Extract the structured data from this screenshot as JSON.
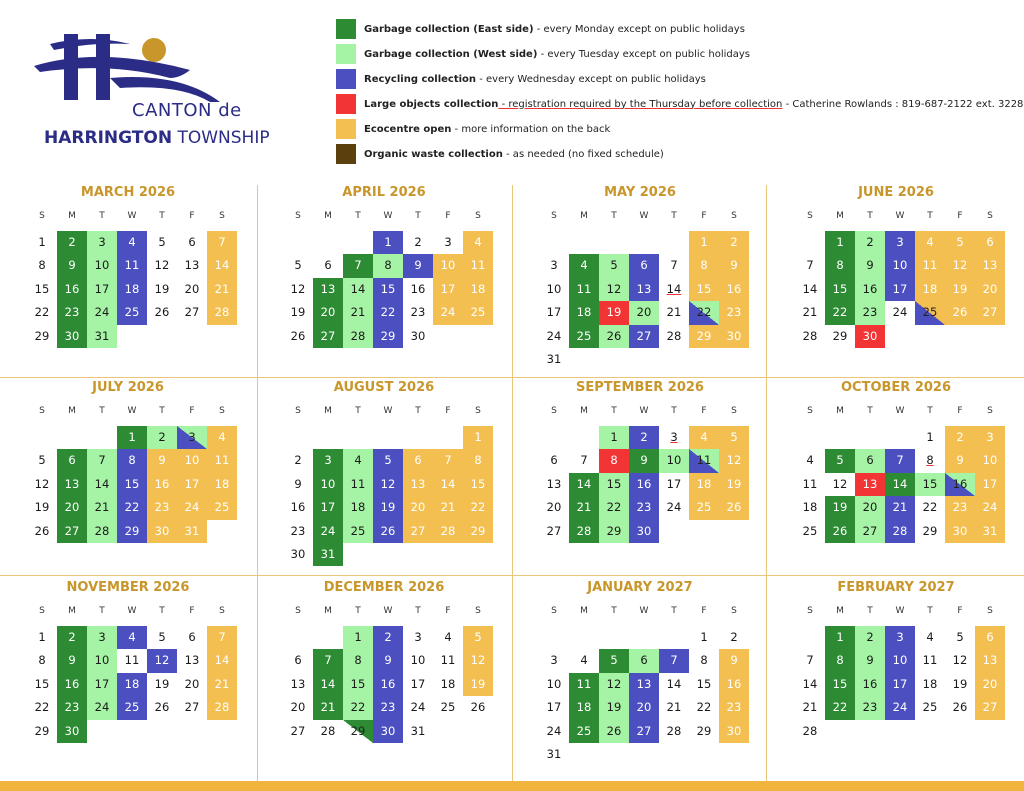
{
  "header": {
    "logo_line1": "CANTON de",
    "logo_line2_bold": "HARRINGTON",
    "logo_line2_rest": " TOWNSHIP"
  },
  "colors": {
    "east": "#2d8b34",
    "west": "#a5f3a4",
    "recycling": "#4b4fbf",
    "large": "#f23434",
    "eco": "#f3bf51",
    "organic": "#5b3f0c",
    "title": "#c8962a",
    "divider": "#e9c57a",
    "footer": "#f1b43c"
  },
  "legend": [
    {
      "key": "east",
      "label": "Garbage collection (East side)",
      "text": " - every Monday except on public holidays"
    },
    {
      "key": "west",
      "label": "Garbage collection (West side)",
      "text": " - every Tuesday except on public holidays"
    },
    {
      "key": "recycling",
      "label": "Recycling collection",
      "text": " - every Wednesday except on public holidays"
    },
    {
      "key": "large",
      "label": "Large objects collection",
      "text_underlined": " - registration required by the Thursday before collection",
      "text": " - Catherine Rowlands : 819-687-2122 ext. 3228"
    },
    {
      "key": "eco",
      "label": "Ecocentre open",
      "text": " - more information on the back"
    },
    {
      "key": "organic",
      "label": "Organic waste collection",
      "text": " - as needed (no fixed schedule)"
    }
  ],
  "weekdays": [
    "S",
    "M",
    "T",
    "W",
    "T",
    "F",
    "S"
  ],
  "months": [
    {
      "title": "MARCH 2026",
      "start": 0,
      "days": 31,
      "east": [
        2,
        9,
        16,
        23,
        30
      ],
      "west": [
        3,
        10,
        17,
        24,
        31
      ],
      "recycling": [
        4,
        11,
        18,
        25
      ],
      "eco": [
        7,
        14,
        21,
        28
      ],
      "large": [],
      "split": [],
      "underline": []
    },
    {
      "title": "APRIL 2026",
      "start": 3,
      "days": 30,
      "east": [
        7,
        13,
        20,
        27
      ],
      "west": [
        8,
        14,
        21,
        28
      ],
      "recycling": [
        1,
        9,
        15,
        22,
        29
      ],
      "eco": [
        4,
        10,
        11,
        17,
        18,
        24,
        25
      ],
      "large": [],
      "split": [],
      "underline": []
    },
    {
      "title": "MAY 2026",
      "start": 5,
      "days": 31,
      "east": [
        4,
        11,
        18,
        25
      ],
      "west": [
        5,
        12,
        20,
        26
      ],
      "recycling": [
        6,
        13,
        27
      ],
      "eco": [
        1,
        2,
        8,
        9,
        15,
        16,
        23,
        29,
        30
      ],
      "large": [
        19
      ],
      "split": [
        {
          "d": 22,
          "a": "west",
          "b": "recycling"
        }
      ],
      "underline": [
        14
      ]
    },
    {
      "title": "JUNE 2026",
      "start": 1,
      "days": 30,
      "east": [
        1,
        8,
        15,
        22
      ],
      "west": [
        2,
        9,
        16,
        23
      ],
      "recycling": [
        3,
        10,
        17
      ],
      "eco": [
        4,
        5,
        6,
        11,
        12,
        13,
        18,
        19,
        20,
        26,
        27
      ],
      "large": [
        30
      ],
      "split": [
        {
          "d": 25,
          "a": "eco",
          "b": "recycling"
        }
      ],
      "underline": []
    },
    {
      "title": "JULY 2026",
      "start": 3,
      "days": 31,
      "east": [
        1,
        6,
        13,
        20,
        27
      ],
      "west": [
        2,
        7,
        14,
        21,
        28
      ],
      "recycling": [
        8,
        15,
        22,
        29
      ],
      "eco": [
        4,
        9,
        10,
        11,
        16,
        17,
        18,
        23,
        24,
        25,
        30,
        31
      ],
      "large": [],
      "split": [
        {
          "d": 3,
          "a": "west",
          "b": "recycling"
        }
      ],
      "underline": []
    },
    {
      "title": "AUGUST 2026",
      "start": 6,
      "days": 31,
      "east": [
        3,
        10,
        17,
        24,
        31
      ],
      "west": [
        4,
        11,
        18,
        25
      ],
      "recycling": [
        5,
        12,
        19,
        26
      ],
      "eco": [
        1,
        6,
        7,
        8,
        13,
        14,
        15,
        20,
        21,
        22,
        27,
        28,
        29
      ],
      "large": [],
      "split": [],
      "underline": []
    },
    {
      "title": "SEPTEMBER 2026",
      "start": 2,
      "days": 30,
      "east": [
        9,
        14,
        21,
        28
      ],
      "west": [
        1,
        10,
        15,
        22,
        29
      ],
      "recycling": [
        2,
        16,
        23,
        30
      ],
      "eco": [
        4,
        5,
        12,
        18,
        19,
        25,
        26
      ],
      "large": [
        8
      ],
      "split": [
        {
          "d": 11,
          "a": "west",
          "b": "recycling"
        }
      ],
      "underline": [
        3
      ]
    },
    {
      "title": "OCTOBER 2026",
      "start": 4,
      "days": 31,
      "east": [
        5,
        14,
        19,
        26
      ],
      "west": [
        6,
        15,
        20,
        27
      ],
      "recycling": [
        7,
        21,
        28
      ],
      "eco": [
        2,
        3,
        9,
        10,
        17,
        23,
        24,
        30,
        31
      ],
      "large": [
        13
      ],
      "split": [
        {
          "d": 16,
          "a": "west",
          "b": "recycling"
        }
      ],
      "underline": [
        8
      ]
    },
    {
      "title": "NOVEMBER 2026",
      "start": 0,
      "days": 30,
      "east": [
        2,
        9,
        16,
        23,
        30
      ],
      "west": [
        3,
        10,
        17,
        24
      ],
      "recycling": [
        4,
        12,
        18,
        25
      ],
      "eco": [
        7,
        14,
        21,
        28
      ],
      "large": [],
      "split": [],
      "underline": []
    },
    {
      "title": "DECEMBER 2026",
      "start": 2,
      "days": 31,
      "east": [
        7,
        14,
        21
      ],
      "west": [
        1,
        8,
        15,
        22
      ],
      "recycling": [
        2,
        9,
        16,
        23,
        30
      ],
      "eco": [
        5,
        12,
        19
      ],
      "large": [],
      "split": [
        {
          "d": 29,
          "a": "east",
          "b": "white"
        }
      ],
      "underline": []
    },
    {
      "title": "JANUARY 2027",
      "start": 5,
      "days": 31,
      "east": [
        5,
        11,
        18,
        25
      ],
      "west": [
        6,
        12,
        19,
        26
      ],
      "recycling": [
        7,
        13,
        20,
        27
      ],
      "eco": [
        9,
        16,
        23,
        30
      ],
      "large": [],
      "split": [],
      "underline": []
    },
    {
      "title": "FEBRUARY 2027",
      "start": 1,
      "days": 28,
      "east": [
        1,
        8,
        15,
        22
      ],
      "west": [
        2,
        9,
        16,
        23
      ],
      "recycling": [
        3,
        10,
        17,
        24
      ],
      "eco": [
        6,
        13,
        20,
        27
      ],
      "large": [],
      "split": [],
      "underline": []
    }
  ]
}
